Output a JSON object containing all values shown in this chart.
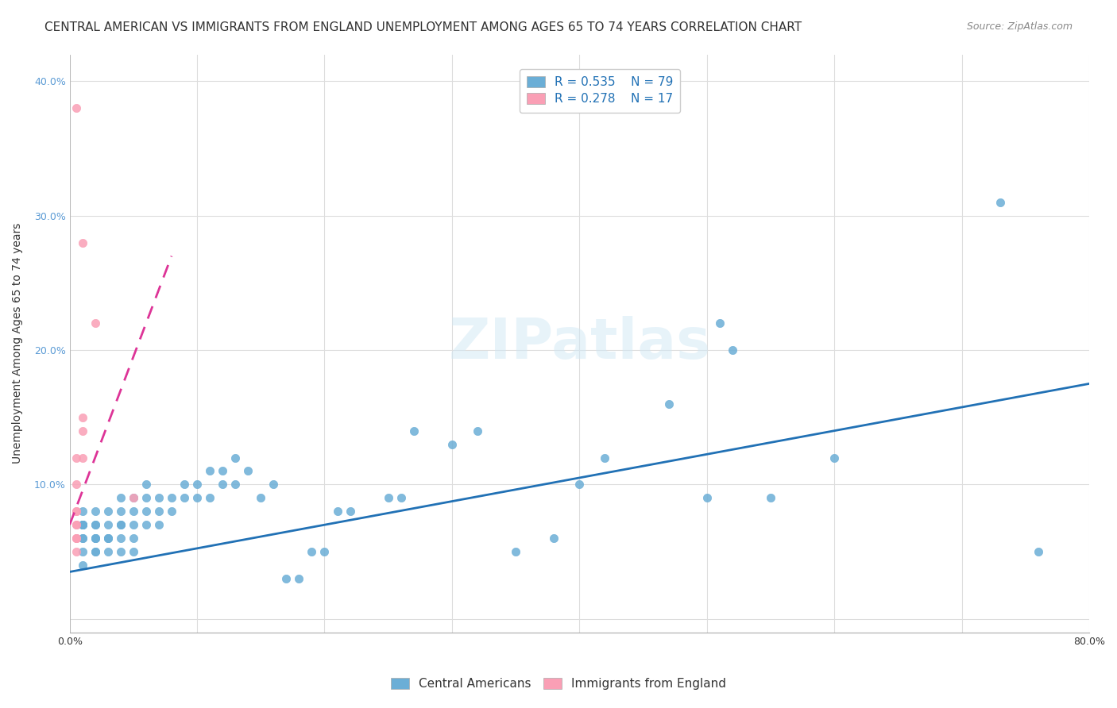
{
  "title": "CENTRAL AMERICAN VS IMMIGRANTS FROM ENGLAND UNEMPLOYMENT AMONG AGES 65 TO 74 YEARS CORRELATION CHART",
  "source": "Source: ZipAtlas.com",
  "xlabel": "",
  "ylabel": "Unemployment Among Ages 65 to 74 years",
  "xlim": [
    0,
    0.8
  ],
  "ylim": [
    -0.01,
    0.42
  ],
  "x_ticks": [
    0.0,
    0.1,
    0.2,
    0.3,
    0.4,
    0.5,
    0.6,
    0.7,
    0.8
  ],
  "x_tick_labels": [
    "0.0%",
    "",
    "",
    "",
    "",
    "",
    "",
    "",
    "80.0%"
  ],
  "y_ticks": [
    0.0,
    0.1,
    0.2,
    0.3,
    0.4
  ],
  "y_tick_labels": [
    "",
    "10.0%",
    "20.0%",
    "30.0%",
    "40.0%"
  ],
  "blue_color": "#6baed6",
  "pink_color": "#fa9fb5",
  "blue_line_color": "#2171b5",
  "pink_line_color": "#dd3497",
  "R_blue": 0.535,
  "N_blue": 79,
  "R_pink": 0.278,
  "N_pink": 17,
  "watermark": "ZIPatlas",
  "blue_scatter_x": [
    0.01,
    0.01,
    0.01,
    0.01,
    0.01,
    0.01,
    0.01,
    0.01,
    0.01,
    0.02,
    0.02,
    0.02,
    0.02,
    0.02,
    0.02,
    0.02,
    0.02,
    0.03,
    0.03,
    0.03,
    0.03,
    0.03,
    0.03,
    0.04,
    0.04,
    0.04,
    0.04,
    0.04,
    0.04,
    0.05,
    0.05,
    0.05,
    0.05,
    0.05,
    0.06,
    0.06,
    0.06,
    0.06,
    0.07,
    0.07,
    0.07,
    0.08,
    0.08,
    0.09,
    0.09,
    0.1,
    0.1,
    0.11,
    0.11,
    0.12,
    0.12,
    0.13,
    0.13,
    0.14,
    0.15,
    0.16,
    0.17,
    0.18,
    0.19,
    0.2,
    0.21,
    0.22,
    0.25,
    0.26,
    0.27,
    0.3,
    0.32,
    0.35,
    0.38,
    0.4,
    0.42,
    0.47,
    0.5,
    0.51,
    0.52,
    0.55,
    0.6,
    0.73,
    0.76
  ],
  "blue_scatter_y": [
    0.05,
    0.06,
    0.06,
    0.07,
    0.07,
    0.07,
    0.07,
    0.08,
    0.04,
    0.05,
    0.05,
    0.06,
    0.06,
    0.06,
    0.07,
    0.07,
    0.08,
    0.05,
    0.06,
    0.06,
    0.06,
    0.07,
    0.08,
    0.05,
    0.06,
    0.07,
    0.07,
    0.08,
    0.09,
    0.05,
    0.06,
    0.07,
    0.08,
    0.09,
    0.07,
    0.08,
    0.09,
    0.1,
    0.07,
    0.08,
    0.09,
    0.08,
    0.09,
    0.09,
    0.1,
    0.09,
    0.1,
    0.09,
    0.11,
    0.1,
    0.11,
    0.1,
    0.12,
    0.11,
    0.09,
    0.1,
    0.03,
    0.03,
    0.05,
    0.05,
    0.08,
    0.08,
    0.09,
    0.09,
    0.14,
    0.13,
    0.14,
    0.05,
    0.06,
    0.1,
    0.12,
    0.16,
    0.09,
    0.22,
    0.2,
    0.09,
    0.12,
    0.31,
    0.05
  ],
  "pink_scatter_x": [
    0.005,
    0.005,
    0.005,
    0.005,
    0.005,
    0.005,
    0.005,
    0.005,
    0.005,
    0.005,
    0.005,
    0.01,
    0.01,
    0.01,
    0.01,
    0.02,
    0.05
  ],
  "pink_scatter_y": [
    0.05,
    0.06,
    0.06,
    0.06,
    0.07,
    0.07,
    0.08,
    0.08,
    0.1,
    0.12,
    0.38,
    0.12,
    0.14,
    0.15,
    0.28,
    0.22,
    0.09
  ],
  "blue_trend_x": [
    0.0,
    0.8
  ],
  "blue_trend_y": [
    0.035,
    0.175
  ],
  "pink_trend_x": [
    0.0,
    0.08
  ],
  "pink_trend_y": [
    0.07,
    0.27
  ],
  "legend_R_label_blue": "R = 0.535",
  "legend_N_label_blue": "N = 79",
  "legend_R_label_pink": "R = 0.278",
  "legend_N_label_pink": "N = 17",
  "title_fontsize": 11,
  "source_fontsize": 9,
  "axis_label_fontsize": 10,
  "tick_fontsize": 9,
  "legend_fontsize": 11
}
